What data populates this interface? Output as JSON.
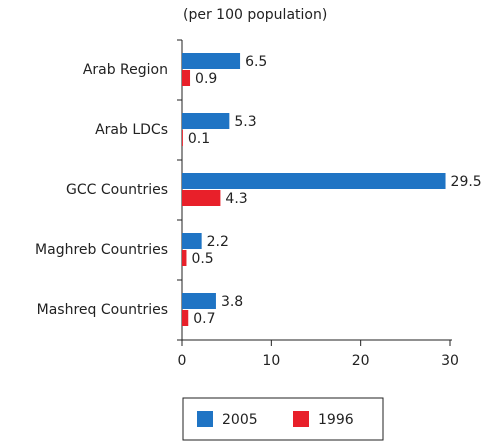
{
  "chart_data": {
    "type": "bar",
    "orientation": "horizontal",
    "subtitle": "(per 100 population)",
    "categories": [
      "Arab Region",
      "Arab LDCs",
      "GCC Countries",
      "Maghreb Countries",
      "Mashreq Countries"
    ],
    "series": [
      {
        "name": "2005",
        "color": "#1f74c4",
        "values": [
          6.5,
          5.3,
          29.5,
          2.2,
          3.8
        ]
      },
      {
        "name": "1996",
        "color": "#e8202a",
        "values": [
          0.9,
          0.1,
          4.3,
          0.5,
          0.7
        ]
      }
    ],
    "xlim": [
      0,
      30
    ],
    "xticks": [
      0,
      10,
      20,
      30
    ],
    "grid": false,
    "legend": "bottom"
  }
}
